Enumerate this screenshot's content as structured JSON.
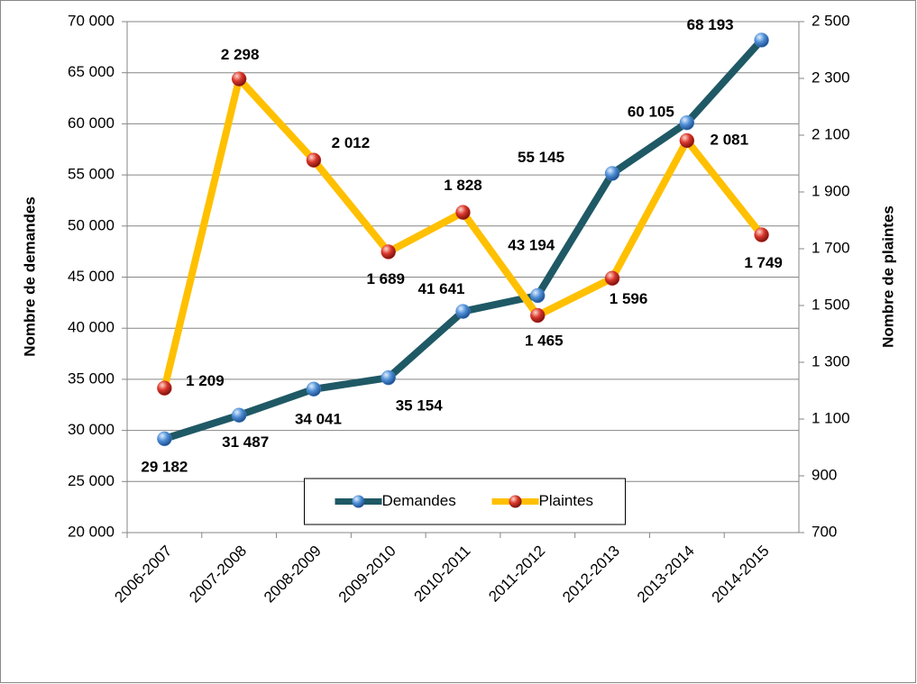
{
  "chart_data": {
    "type": "line",
    "categories": [
      "2006-2007",
      "2007-2008",
      "2008-2009",
      "2009-2010",
      "2010-2011",
      "2011-2012",
      "2012-2013",
      "2013-2014",
      "2014-2015"
    ],
    "y_label": "Nombre de demandes",
    "y2_label": "Nombre de plaintes",
    "ylim": [
      20000,
      70000
    ],
    "yticks": [
      {
        "value": 20000,
        "label": "20 000"
      },
      {
        "value": 25000,
        "label": "25 000"
      },
      {
        "value": 30000,
        "label": "30 000"
      },
      {
        "value": 35000,
        "label": "35 000"
      },
      {
        "value": 40000,
        "label": "40 000"
      },
      {
        "value": 45000,
        "label": "45 000"
      },
      {
        "value": 50000,
        "label": "50 000"
      },
      {
        "value": 55000,
        "label": "55 000"
      },
      {
        "value": 60000,
        "label": "60 000"
      },
      {
        "value": 65000,
        "label": "65 000"
      },
      {
        "value": 70000,
        "label": "70 000"
      }
    ],
    "y2lim": [
      700,
      2500
    ],
    "y2ticks": [
      700,
      900,
      {
        "value": 1100,
        "label": "1 100"
      },
      {
        "value": 1300,
        "label": "1 300"
      },
      {
        "value": 1500,
        "label": "1 500"
      },
      {
        "value": 1700,
        "label": "1 700"
      },
      {
        "value": 1900,
        "label": "1 900"
      },
      {
        "value": 2100,
        "label": "2 100"
      },
      {
        "value": 2300,
        "label": "2 300"
      },
      {
        "value": 2500,
        "label": "2 500"
      }
    ],
    "grid": true,
    "legend": "bottom",
    "series": [
      {
        "name": "Demandes",
        "color": "#1f5965",
        "marker_color": "#4f8fd6",
        "values": [
          29182,
          31487,
          34041,
          35154,
          41641,
          43194,
          55145,
          60105,
          68193
        ],
        "value_labels": [
          "29 182",
          "31 487",
          "34 041",
          "35 154",
          "41 641",
          "43 194",
          "55 145",
          "60 105",
          "68 193"
        ]
      },
      {
        "name": "Plaintes",
        "color": "#ffc000",
        "marker_color": "#d9352a",
        "axis": "y2",
        "values": [
          1209,
          2298,
          2012,
          1689,
          1828,
          1465,
          1596,
          2081,
          1749
        ],
        "value_labels": [
          "1 209",
          "2 298",
          "2 012",
          "1 689",
          "1 828",
          "1 465",
          "1 596",
          "2 081",
          "1 749"
        ]
      }
    ]
  }
}
